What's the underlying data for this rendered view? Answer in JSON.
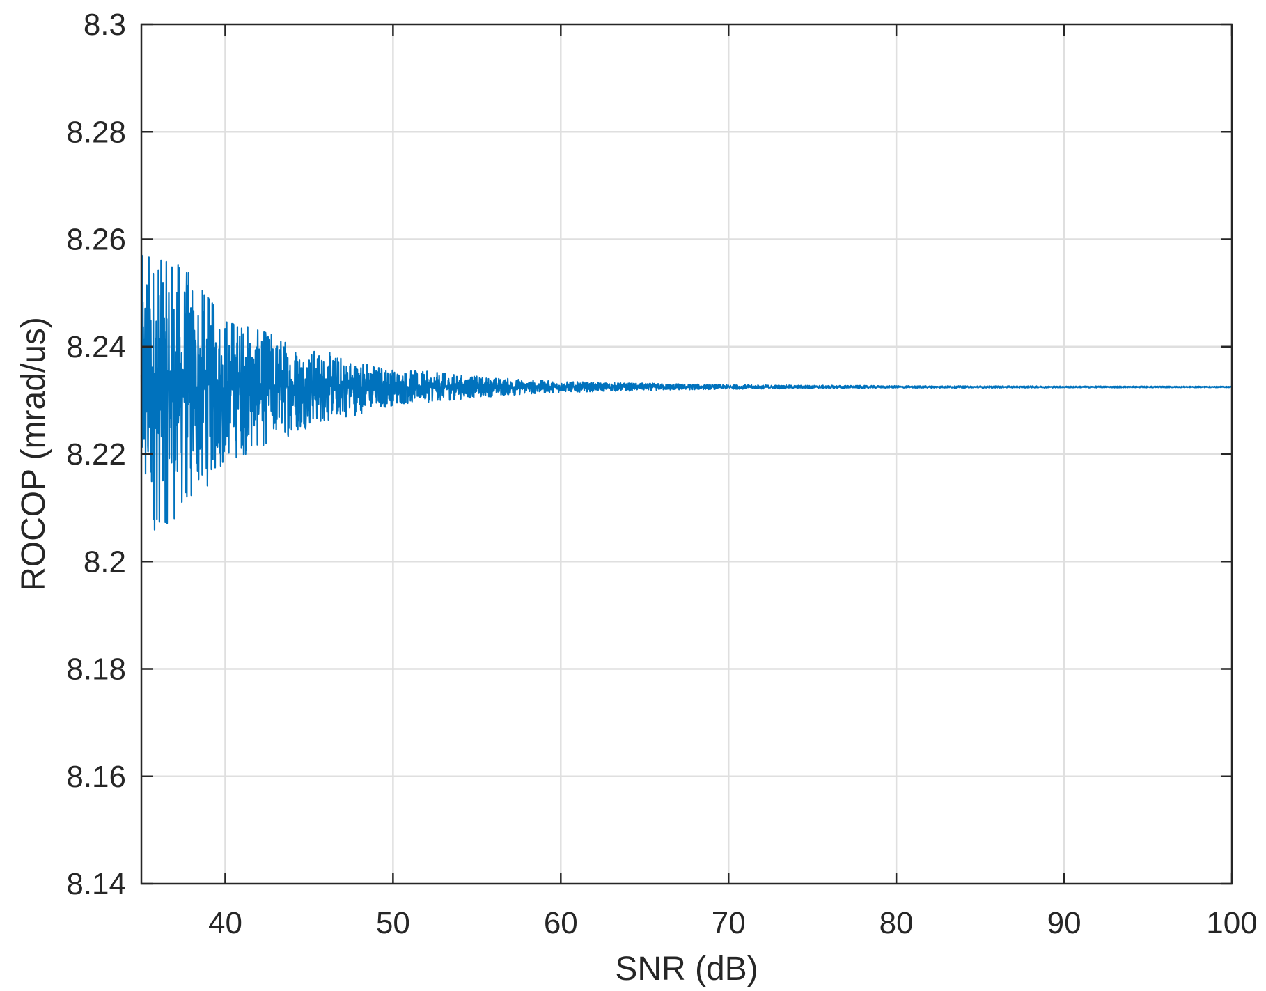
{
  "chart_data": {
    "type": "line",
    "title": "",
    "xlabel": "SNR (dB)",
    "ylabel": "ROCOP (mrad/us)",
    "xlim": [
      35,
      100
    ],
    "ylim": [
      8.14,
      8.3
    ],
    "xticks": [
      40,
      50,
      60,
      70,
      80,
      90,
      100
    ],
    "yticks": [
      8.14,
      8.16,
      8.18,
      8.2,
      8.22,
      8.24,
      8.26,
      8.28,
      8.3
    ],
    "xtick_labels": [
      "40",
      "50",
      "60",
      "70",
      "80",
      "90",
      "100"
    ],
    "ytick_labels": [
      "8.14",
      "8.16",
      "8.18",
      "8.2",
      "8.22",
      "8.24",
      "8.26",
      "8.28",
      "8.3"
    ],
    "grid": true,
    "legend": "none",
    "series": [
      {
        "color": "#0072BD",
        "center_value": 8.2325,
        "x_range": [
          35,
          100
        ],
        "envelope": [
          {
            "x": 35,
            "upper": 8.257,
            "lower": 8.204
          },
          {
            "x": 37.5,
            "upper": 8.255,
            "lower": 8.208
          },
          {
            "x": 40,
            "upper": 8.245,
            "lower": 8.218
          },
          {
            "x": 45,
            "upper": 8.24,
            "lower": 8.225
          },
          {
            "x": 50,
            "upper": 8.236,
            "lower": 8.229
          },
          {
            "x": 55,
            "upper": 8.2345,
            "lower": 8.2305
          },
          {
            "x": 60,
            "upper": 8.2335,
            "lower": 8.2315
          },
          {
            "x": 70,
            "upper": 8.2329,
            "lower": 8.2321
          },
          {
            "x": 80,
            "upper": 8.2327,
            "lower": 8.2323
          },
          {
            "x": 100,
            "upper": 8.2326,
            "lower": 8.2324
          }
        ]
      }
    ]
  }
}
